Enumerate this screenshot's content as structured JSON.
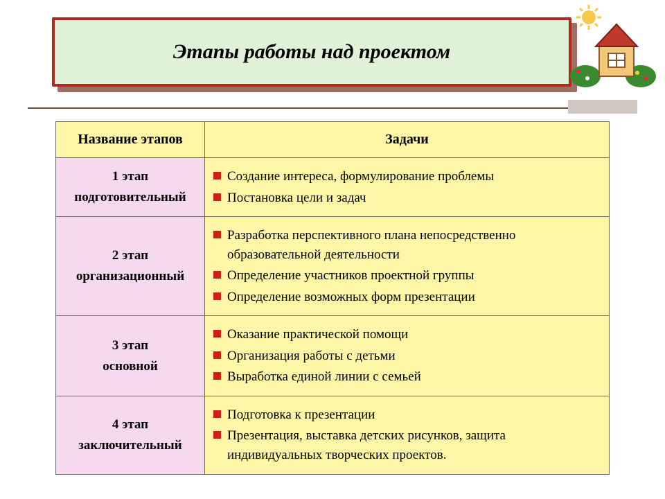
{
  "title": "Этапы работы над проектом",
  "colors": {
    "title_bg": "#dff2d8",
    "title_border": "#b22a1c",
    "title_shadow": "#9e6d66",
    "header_bg": "#fdf6a6",
    "stage_bg": "#f6d8ef",
    "tasks_bg": "#fdf6a6",
    "bullet": "#cf1f17",
    "accent_line": "#6b4a3d",
    "accent_block": "#d1c7c2"
  },
  "table": {
    "columns": [
      "Название этапов",
      "Задачи"
    ],
    "rows": [
      {
        "stage_num": "1 этап",
        "stage_name": "подготовительный",
        "tasks": [
          "Создание интереса, формулирование проблемы",
          "Постановка цели и задач"
        ]
      },
      {
        "stage_num": "2 этап",
        "stage_name": "организационный",
        "tasks": [
          "Разработка перспективного плана непосредственно образовательной деятельности",
          "Определение участников проектной группы",
          "Определение возможных форм презентации"
        ]
      },
      {
        "stage_num": "3 этап",
        "stage_name": "основной",
        "tasks": [
          "Оказание практической помощи",
          "Организация работы с детьми",
          "Выработка единой линии с семьей"
        ]
      },
      {
        "stage_num": "4 этап",
        "stage_name": "заключительный",
        "tasks": [
          "Подготовка к презентации",
          "Презентация,  выставка детских рисунков, защита индивидуальных творческих проектов."
        ]
      }
    ]
  }
}
